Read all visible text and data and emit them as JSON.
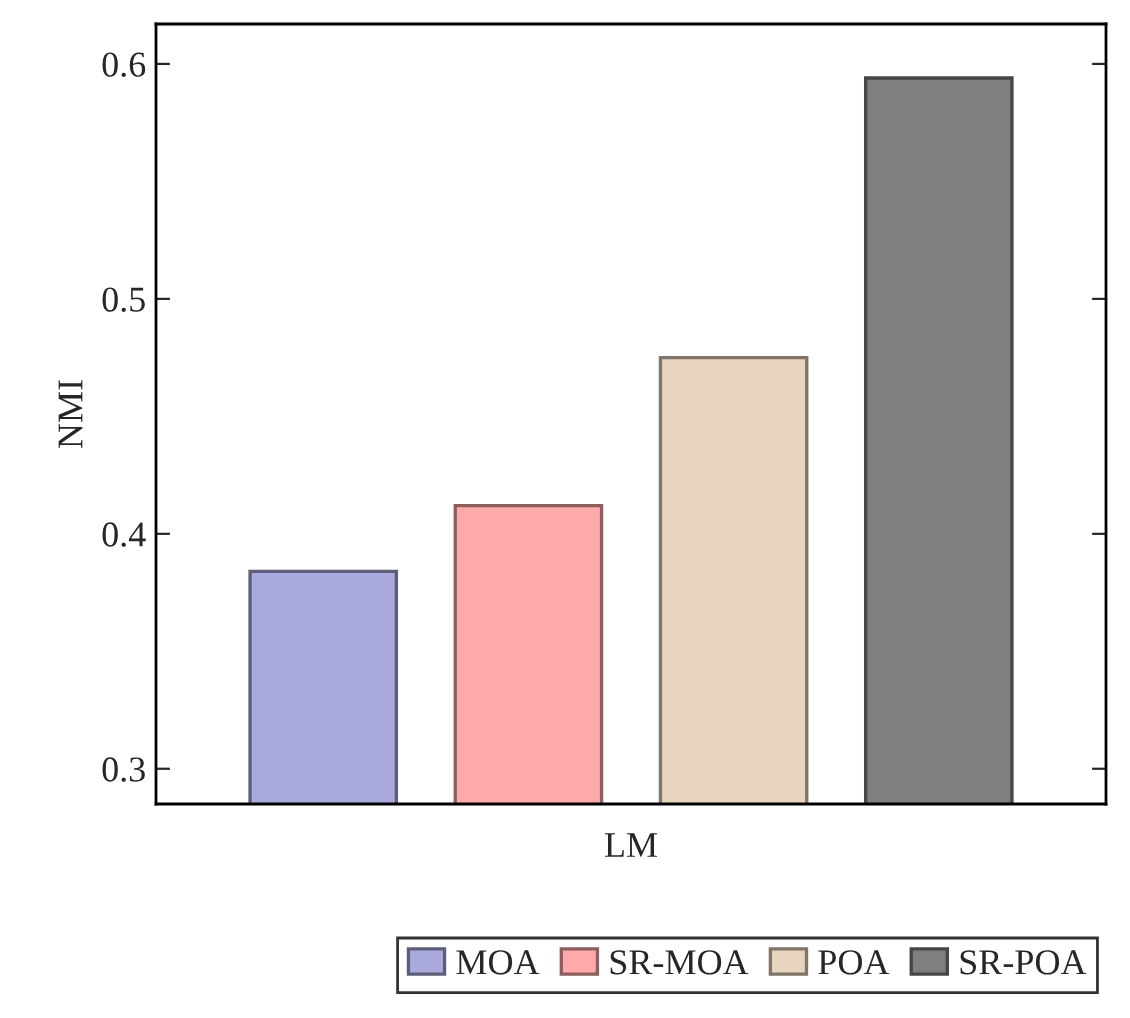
{
  "chart_data": {
    "type": "bar",
    "ylabel": "NMI",
    "categories": [
      "LM"
    ],
    "series": [
      {
        "name": "MOA",
        "color": "#aaaadf",
        "values": [
          0.384
        ]
      },
      {
        "name": "SR-MOA",
        "color": "#ffaaaa",
        "values": [
          0.412
        ]
      },
      {
        "name": "POA",
        "color": "#e8d5bd",
        "values": [
          0.475
        ]
      },
      {
        "name": "SR-POA",
        "color": "#7f7f7f",
        "values": [
          0.594
        ]
      }
    ],
    "ylim": [
      0.285,
      0.617
    ],
    "yticks": [
      0.3,
      0.4,
      0.5,
      0.6
    ],
    "grid": false,
    "legend": "bottom"
  }
}
